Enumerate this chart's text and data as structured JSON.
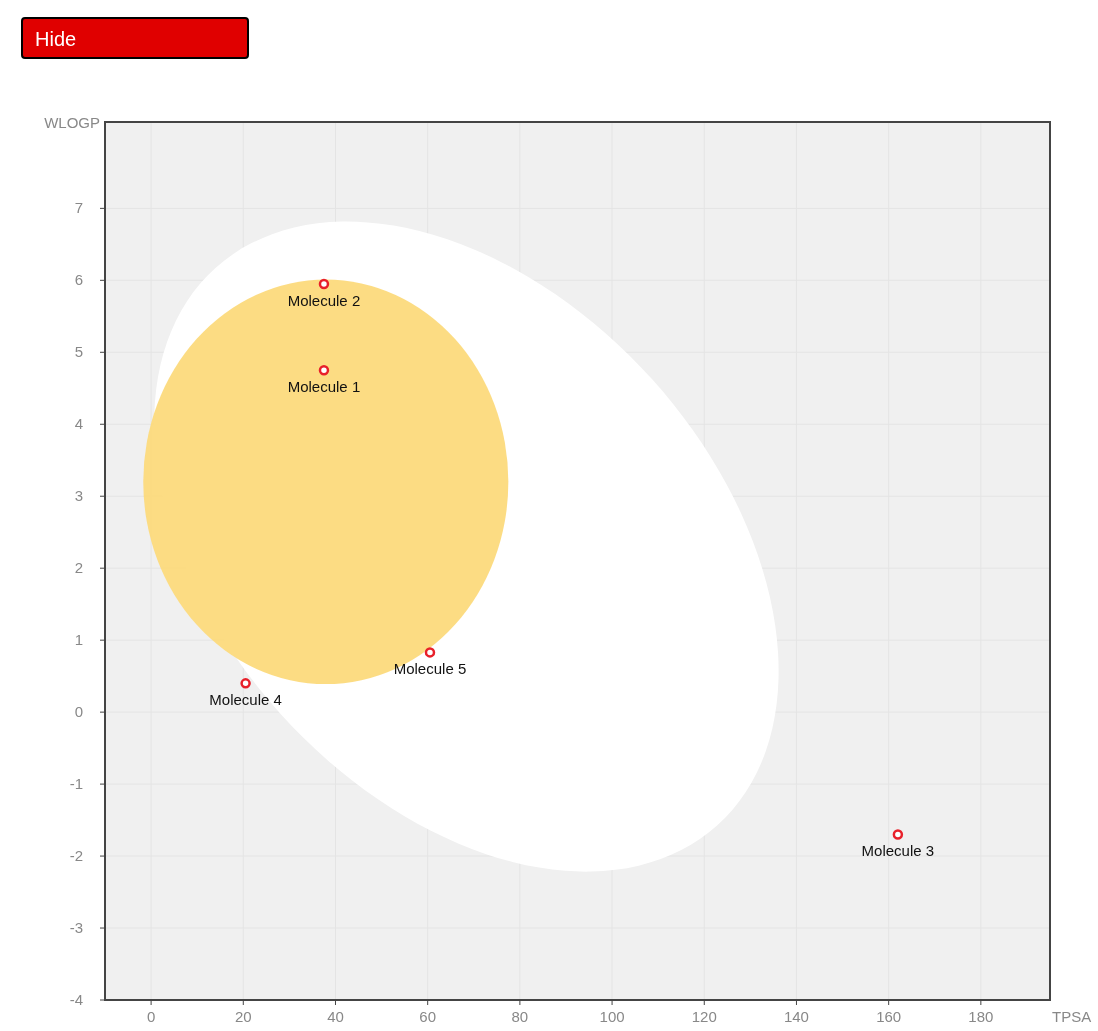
{
  "chart_data": {
    "type": "scatter",
    "xlabel": "TPSA",
    "ylabel": "WLOGP",
    "x": [
      37.5,
      37.5,
      162,
      20.5,
      60.5
    ],
    "series": [
      {
        "color": "#e8202a",
        "values": [
          4.75,
          5.95,
          -1.7,
          0.4,
          0.83
        ]
      }
    ],
    "xlim": [
      -10,
      195
    ],
    "xticks": [
      0,
      20,
      40,
      60,
      80,
      100,
      120,
      140,
      160,
      180
    ],
    "ylim": [
      -4,
      8.2
    ],
    "yticks": [
      -4,
      -3,
      -2,
      -1,
      0,
      1,
      2,
      3,
      4,
      5,
      6,
      7
    ],
    "grid": true,
    "marker": "circle",
    "annotations": [
      {
        "text": "Molecule 1",
        "x": 37.5,
        "y": 4.75
      },
      {
        "text": "Molecule 2",
        "x": 37.5,
        "y": 5.95
      },
      {
        "text": "Molecule 3",
        "x": 162,
        "y": -1.7
      },
      {
        "text": "Molecule 4",
        "x": 20.5,
        "y": 0.4
      },
      {
        "text": "Molecule 5",
        "x": 60.5,
        "y": 0.83
      },
      "Hide"
    ]
  }
}
